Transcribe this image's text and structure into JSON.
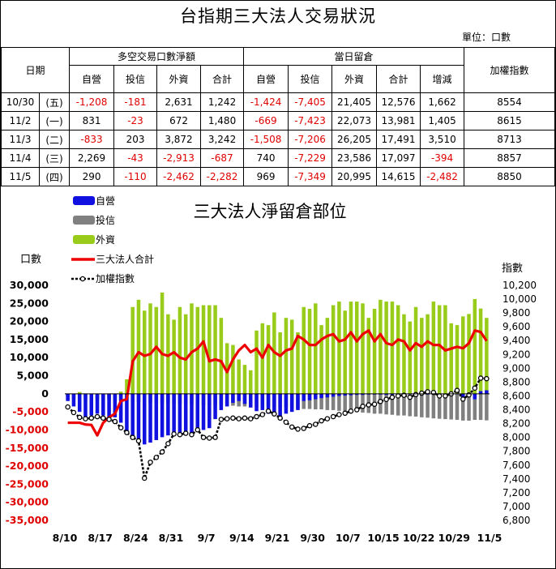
{
  "header": {
    "title": "台指期三大法人交易狀況",
    "unit": "單位：口數"
  },
  "table": {
    "col_date": "日期",
    "group1": "多空交易口數淨額",
    "group2": "當日留倉",
    "col_index": "加權指數",
    "subheaders": [
      "自營",
      "投信",
      "外資",
      "合計",
      "自營",
      "投信",
      "外資",
      "合計",
      "增減"
    ],
    "rows": [
      {
        "date": "10/30",
        "dow": "(五)",
        "vals": [
          "-1,208",
          "-181",
          "2,631",
          "1,242",
          "-1,424",
          "-7,405",
          "21,405",
          "12,576",
          "1,662"
        ],
        "index": "8554"
      },
      {
        "date": "11/2",
        "dow": "(一)",
        "vals": [
          "831",
          "-23",
          "672",
          "1,480",
          "-669",
          "-7,423",
          "22,073",
          "13,981",
          "1,405"
        ],
        "index": "8615"
      },
      {
        "date": "11/3",
        "dow": "(二)",
        "vals": [
          "-833",
          "203",
          "3,872",
          "3,242",
          "-1,508",
          "-7,206",
          "26,205",
          "17,491",
          "3,510"
        ],
        "index": "8713"
      },
      {
        "date": "11/4",
        "dow": "(三)",
        "vals": [
          "2,269",
          "-43",
          "-2,913",
          "-687",
          "740",
          "-7,229",
          "23,586",
          "17,097",
          "-394"
        ],
        "index": "8857"
      },
      {
        "date": "11/5",
        "dow": "(四)",
        "vals": [
          "290",
          "-110",
          "-2,462",
          "-2,282",
          "969",
          "-7,349",
          "20,995",
          "14,615",
          "-2,482"
        ],
        "index": "8850"
      }
    ]
  },
  "chart_data": {
    "type": "bar",
    "title": "三大法人淨留倉部位",
    "ylabel": "口數",
    "y2label": "指數",
    "ylim": [
      -35000,
      30000
    ],
    "y2lim": [
      6800,
      10200
    ],
    "yticks": [
      "30,000",
      "25,000",
      "20,000",
      "15,000",
      "10,000",
      "5,000",
      "0",
      "-5,000",
      "-10,000",
      "-15,000",
      "-20,000",
      "-25,000",
      "-30,000",
      "-35,000"
    ],
    "y2ticks": [
      "10,200",
      "10,000",
      "9,800",
      "9,600",
      "9,400",
      "9,200",
      "9,000",
      "8,800",
      "8,600",
      "8,400",
      "8,200",
      "8,000",
      "7,800",
      "7,600",
      "7,400",
      "7,200",
      "7,000",
      "6,800"
    ],
    "xticks": [
      "8/10",
      "8/17",
      "8/24",
      "8/31",
      "9/7",
      "9/14",
      "9/21",
      "9/30",
      "10/7",
      "10/15",
      "10/22",
      "10/29",
      "11/5"
    ],
    "legend_position": "top-left",
    "series": [
      {
        "name": "自營",
        "kind": "bar",
        "color": "#1010e0",
        "values": [
          -2000,
          -3500,
          -5000,
          -6500,
          -6000,
          -5500,
          -6000,
          -7000,
          -6500,
          -8000,
          -11000,
          -12000,
          -13500,
          -14000,
          -13500,
          -12800,
          -12000,
          -11500,
          -11000,
          -10800,
          -10500,
          -11000,
          -10500,
          -10000,
          -9500,
          -7000,
          -4500,
          -3500,
          -2500,
          -2000,
          -2800,
          -3800,
          -4800,
          -4500,
          -5500,
          -5800,
          -6500,
          -5500,
          -5000,
          -4500,
          -2000,
          -1800,
          -1500,
          -1200,
          -1000,
          -800,
          -600,
          -500,
          -400,
          -300,
          -300,
          -200,
          -200,
          -200,
          -300,
          -300,
          -250,
          -200,
          -150,
          -100,
          -150,
          -200,
          -100,
          -150,
          -200,
          -100,
          -150,
          -1424,
          -669,
          -1508,
          740,
          969
        ]
      },
      {
        "name": "投信",
        "kind": "bar",
        "color": "#808080",
        "values": [
          -1500,
          -1500,
          -1500,
          -1500,
          -1600,
          -1600,
          -1600,
          -1600,
          -1800,
          -1800,
          -2000,
          -2000,
          -2200,
          -2200,
          -2500,
          -2500,
          -2700,
          -2700,
          -2800,
          -2800,
          -3000,
          -3000,
          -3000,
          -3200,
          -3200,
          -3300,
          -3300,
          -3300,
          -3300,
          -3500,
          -3500,
          -3500,
          -3600,
          -3600,
          -3600,
          -3800,
          -3800,
          -3800,
          -4000,
          -4000,
          -4200,
          -4200,
          -4300,
          -4300,
          -4500,
          -4500,
          -4700,
          -4800,
          -5000,
          -5000,
          -5200,
          -5300,
          -5500,
          -5500,
          -5700,
          -5800,
          -6000,
          -6000,
          -6200,
          -6300,
          -6500,
          -6600,
          -6800,
          -6900,
          -7000,
          -7100,
          -7200,
          -7405,
          -7423,
          -7206,
          -7229,
          -7349
        ]
      },
      {
        "name": "外資",
        "kind": "bar",
        "color": "#99cc1a",
        "values": [
          -500,
          -200,
          500,
          -600,
          -900,
          -1500,
          -1800,
          -1200,
          -1200,
          600,
          4000,
          24000,
          26000,
          23000,
          25000,
          24000,
          28000,
          22000,
          20500,
          24000,
          22000,
          25000,
          24000,
          24500,
          24500,
          24500,
          21000,
          14000,
          13500,
          9500,
          8000,
          6500,
          17500,
          19500,
          19000,
          22500,
          17000,
          21000,
          20500,
          17000,
          24000,
          23500,
          25000,
          19000,
          21000,
          24500,
          25500,
          23000,
          25500,
          25500,
          25000,
          21000,
          23500,
          26000,
          25500,
          25500,
          24500,
          22000,
          20000,
          24000,
          21000,
          22000,
          25500,
          24500,
          24500,
          19500,
          19000,
          21405,
          22073,
          26205,
          23586,
          20995
        ]
      },
      {
        "name": "三大法人合計",
        "kind": "line",
        "color": "#ee0000",
        "values": [
          -8000,
          -8000,
          -8000,
          -8500,
          -8600,
          -11500,
          -8000,
          -6500,
          -5500,
          -2000,
          -1500,
          9000,
          11500,
          10500,
          11000,
          13000,
          11000,
          10500,
          11500,
          10000,
          9500,
          11500,
          12500,
          14500,
          9000,
          9500,
          9000,
          6000,
          9500,
          12000,
          13500,
          11500,
          12500,
          10000,
          13500,
          11500,
          10500,
          12000,
          12500,
          16000,
          15000,
          13500,
          13500,
          15000,
          16000,
          16500,
          14500,
          15000,
          17000,
          14500,
          16500,
          17500,
          14500,
          16500,
          14000,
          13500,
          15000,
          14500,
          12000,
          14000,
          13000,
          14500,
          13500,
          13500,
          12000,
          12500,
          13000,
          12576,
          13981,
          17491,
          17097,
          14615
        ]
      },
      {
        "name": "加權指數",
        "kind": "line",
        "color": "#000000",
        "axis": "y2",
        "values": [
          8440,
          8360,
          8290,
          8270,
          8280,
          8300,
          8280,
          8260,
          8230,
          8140,
          8070,
          8000,
          7950,
          7410,
          7640,
          7710,
          7790,
          7910,
          8050,
          8040,
          8060,
          8040,
          8110,
          8000,
          7990,
          8000,
          8260,
          8270,
          8280,
          8270,
          8280,
          8270,
          8300,
          8330,
          8380,
          8340,
          8280,
          8220,
          8150,
          8120,
          8130,
          8170,
          8190,
          8240,
          8270,
          8300,
          8330,
          8350,
          8380,
          8400,
          8450,
          8470,
          8480,
          8520,
          8550,
          8580,
          8600,
          8610,
          8580,
          8620,
          8640,
          8660,
          8650,
          8600,
          8600,
          8630,
          8680,
          8554,
          8615,
          8713,
          8857,
          8850
        ]
      }
    ]
  }
}
